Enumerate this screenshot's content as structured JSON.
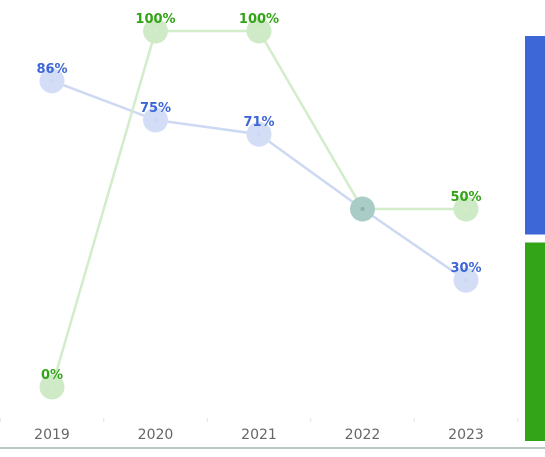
{
  "chart_data": {
    "type": "line",
    "categories": [
      "2019",
      "2020",
      "2021",
      "2022",
      "2023"
    ],
    "ylim": [
      0,
      100
    ],
    "grid": false,
    "series": [
      {
        "color": "#3d66d6",
        "line_color": "#cdd8f3",
        "marker_color": "#d4ddf6",
        "values": [
          86,
          75,
          71,
          50,
          30
        ],
        "labels": [
          "86%",
          "75%",
          "71%",
          "",
          "30%"
        ]
      },
      {
        "color": "#33a317",
        "line_color": "#d3ecca",
        "marker_color": "#cfeac6",
        "values": [
          0,
          100,
          100,
          50,
          50
        ],
        "labels": [
          "0%",
          "100%",
          "100%",
          "",
          "50%"
        ]
      }
    ],
    "overlap_marker_color": "#a9ccc6",
    "legend_swatches": [
      "#3d66d6",
      "#33a317"
    ]
  }
}
